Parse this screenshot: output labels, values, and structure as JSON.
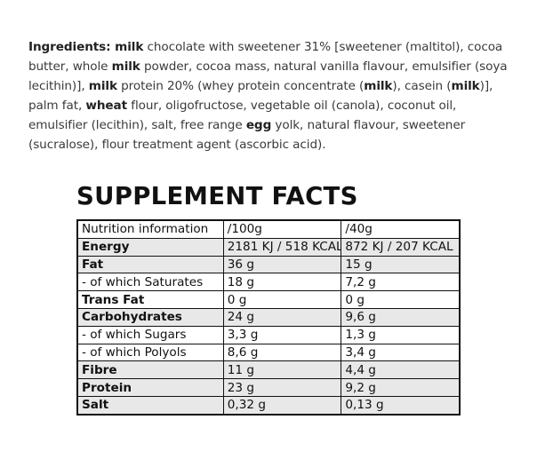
{
  "ingredients": [
    {
      "text": "Ingredients: ",
      "bold": true
    },
    {
      "text": "milk",
      "bold": true
    },
    {
      "text": " chocolate with sweetener 31% [sweetener (maltitol), cocoa butter, whole ",
      "bold": false
    },
    {
      "text": "milk",
      "bold": true
    },
    {
      "text": " powder, cocoa mass, natural vanilla flavour, emulsifier (soya lecithin)], ",
      "bold": false
    },
    {
      "text": "milk",
      "bold": true
    },
    {
      "text": " protein 20% (whey protein concentrate (",
      "bold": false
    },
    {
      "text": "milk",
      "bold": true
    },
    {
      "text": "), casein (",
      "bold": false
    },
    {
      "text": "milk",
      "bold": true
    },
    {
      "text": ")], palm fat, ",
      "bold": false
    },
    {
      "text": "wheat",
      "bold": true
    },
    {
      "text": " flour, oligofructose, vegetable oil (canola), coconut oil, emulsifier (lecithin), salt, free range ",
      "bold": false
    },
    {
      "text": "egg",
      "bold": true
    },
    {
      "text": " yolk, natural flavour, sweetener (sucralose), flour treatment agent (ascorbic acid).",
      "bold": false
    }
  ],
  "facts": {
    "title": "SUPPLEMENT FACTS",
    "header": [
      "Nutrition information",
      "/100g",
      "/40g"
    ],
    "rows": [
      {
        "label": "Energy",
        "per100": "2181 KJ / 518 KCAL",
        "per40": "872 KJ / 207 KCAL",
        "bold": true,
        "shaded": true
      },
      {
        "label": "Fat",
        "per100": "36 g",
        "per40": "15 g",
        "bold": true,
        "shaded": true
      },
      {
        "label": "- of which Saturates",
        "per100": "18 g",
        "per40": "7,2 g",
        "bold": false,
        "shaded": false
      },
      {
        "label": "Trans Fat",
        "per100": "0 g",
        "per40": "0 g",
        "bold": true,
        "shaded": false
      },
      {
        "label": "Carbohydrates",
        "per100": "24 g",
        "per40": "9,6 g",
        "bold": true,
        "shaded": true
      },
      {
        "label": "- of which Sugars",
        "per100": "3,3 g",
        "per40": "1,3 g",
        "bold": false,
        "shaded": false
      },
      {
        "label": "- of which Polyols",
        "per100": "8,6 g",
        "per40": "3,4 g",
        "bold": false,
        "shaded": false
      },
      {
        "label": "Fibre",
        "per100": "11 g",
        "per40": "4,4 g",
        "bold": true,
        "shaded": true
      },
      {
        "label": "Protein",
        "per100": "23 g",
        "per40": "9,2 g",
        "bold": true,
        "shaded": true
      },
      {
        "label": "Salt",
        "per100": "0,32 g",
        "per40": "0,13 g",
        "bold": true,
        "shaded": true
      }
    ]
  }
}
